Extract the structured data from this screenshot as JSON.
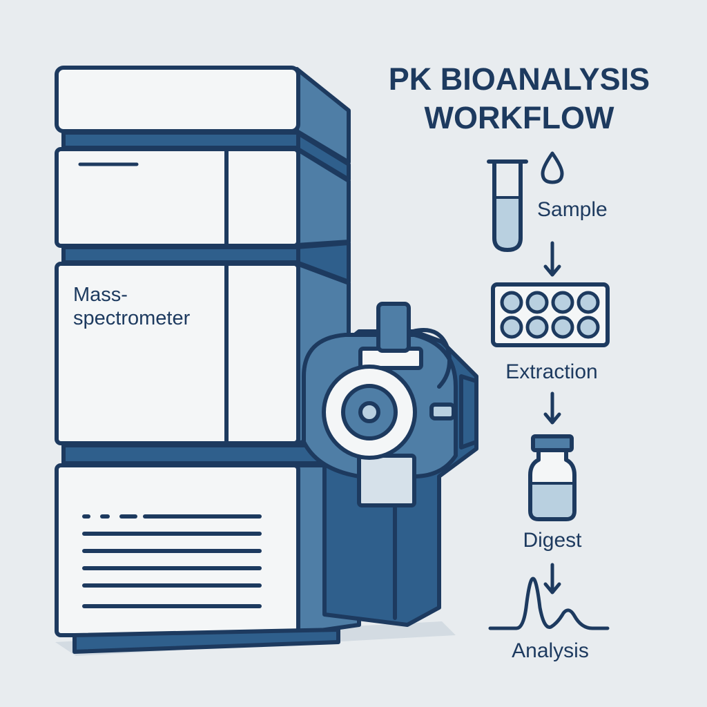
{
  "title": {
    "line1": "PK BIOANALYSIS",
    "line2": "WORKFLOW"
  },
  "instrument": {
    "label_line1": "Mass-",
    "label_line2": "spectrometer"
  },
  "steps": [
    {
      "label": "Sample",
      "icon": "test-tube-icon"
    },
    {
      "label": "Extraction",
      "icon": "well-plate-icon"
    },
    {
      "label": "Digest",
      "icon": "vial-icon"
    },
    {
      "label": "Analysis",
      "icon": "chromatogram-icon"
    }
  ],
  "colors": {
    "background": "#e8ecef",
    "outline": "#1d3a5f",
    "panel_white": "#f4f6f7",
    "steel_blue": "#4f7ea6",
    "dark_blue": "#2f5f8c",
    "light_blue": "#b9d0e0",
    "shadow": "#d3dbe2"
  }
}
